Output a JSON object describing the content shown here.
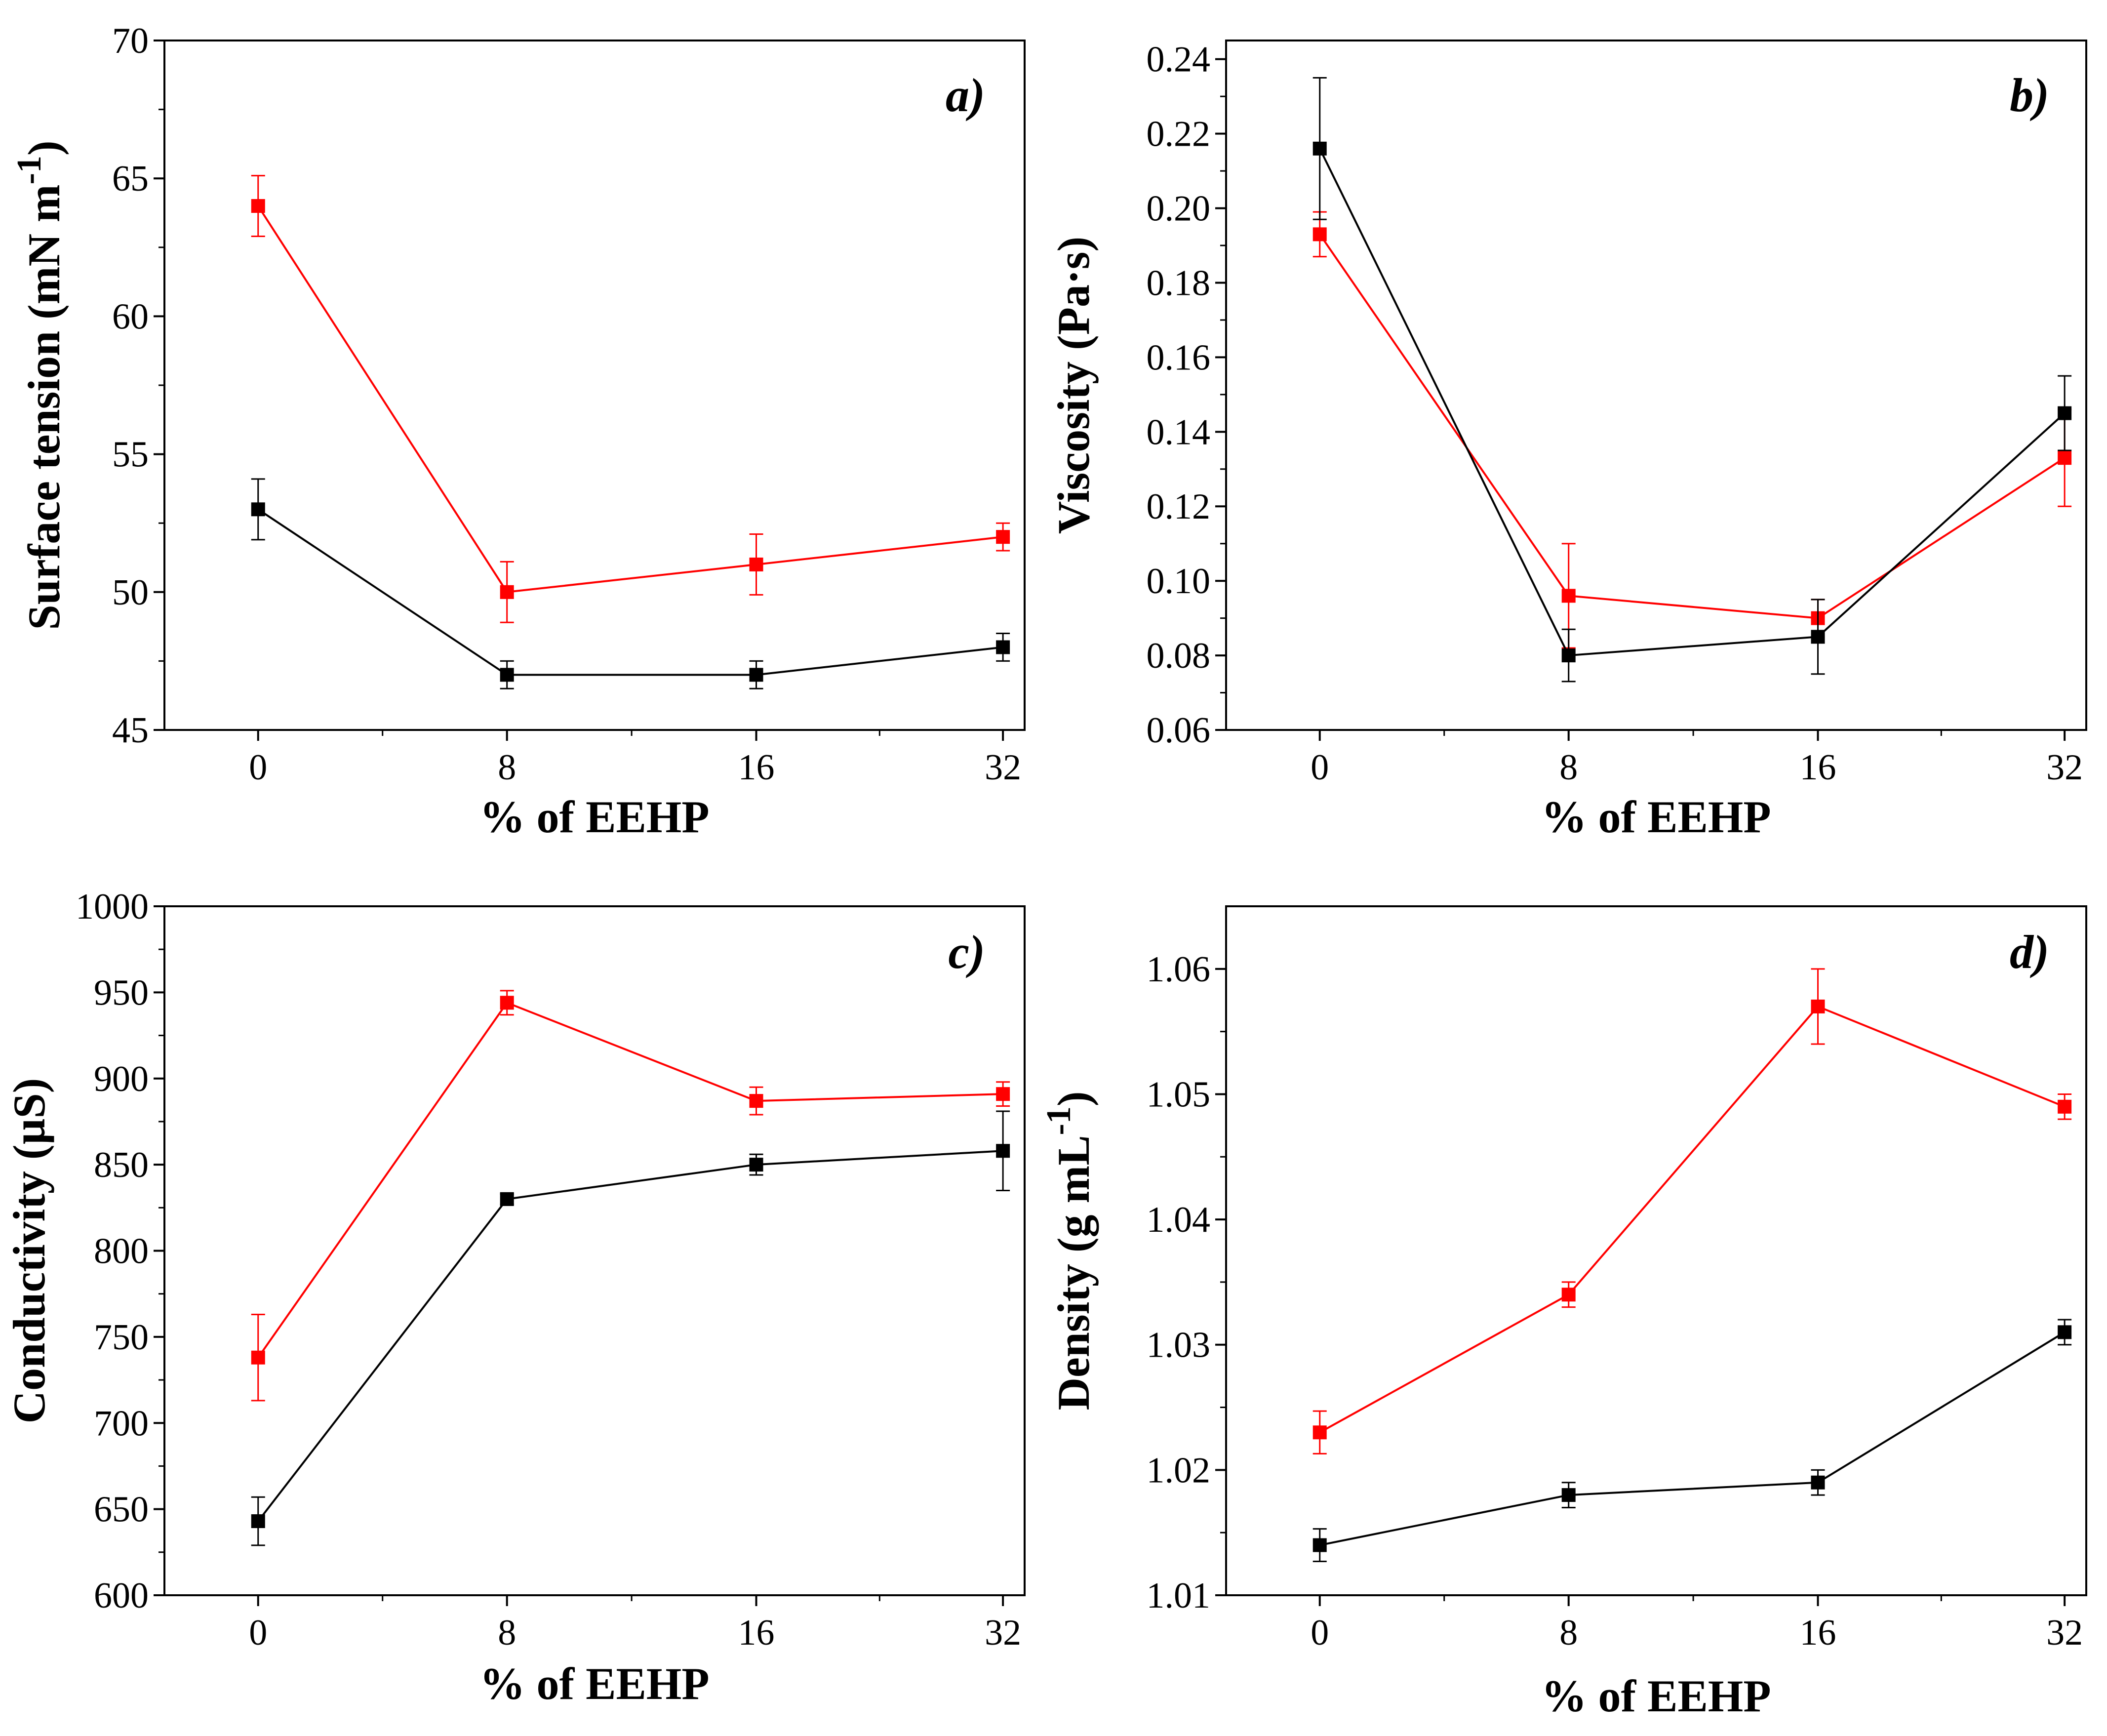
{
  "chart_data": [
    {
      "type": "line",
      "panel_label": "a)",
      "xlabel": "% of EEHP",
      "ylabel": "Surface tension (mN m",
      "ylabel_superscript": "-1",
      "ylabel_suffix": ")",
      "categories": [
        "0",
        "8",
        "16",
        "32"
      ],
      "ylim": [
        45,
        70
      ],
      "yticks": [
        45,
        50,
        55,
        60,
        65,
        70
      ],
      "ytick_labels": [
        "45",
        "50",
        "55",
        "60",
        "65",
        "70"
      ],
      "series": [
        {
          "color": "#ff0000",
          "values": [
            64,
            50,
            51,
            52
          ],
          "errors": [
            1.1,
            1.1,
            1.1,
            0.5
          ]
        },
        {
          "color": "#000000",
          "values": [
            53,
            47,
            47,
            48
          ],
          "errors": [
            1.1,
            0.5,
            0.5,
            0.5
          ]
        }
      ]
    },
    {
      "type": "line",
      "panel_label": "b)",
      "xlabel": "% of EEHP",
      "ylabel": "Viscosity (Pa·s)",
      "ylabel_superscript": "",
      "ylabel_suffix": "",
      "categories": [
        "0",
        "8",
        "16",
        "32"
      ],
      "ylim": [
        0.06,
        0.245
      ],
      "yticks": [
        0.06,
        0.08,
        0.1,
        0.12,
        0.14,
        0.16,
        0.18,
        0.2,
        0.22,
        0.24
      ],
      "ytick_labels": [
        "0.06",
        "0.08",
        "0.10",
        "0.12",
        "0.14",
        "0.16",
        "0.18",
        "0.20",
        "0.22",
        "0.24"
      ],
      "series": [
        {
          "color": "#ff0000",
          "values": [
            0.193,
            0.096,
            0.09,
            0.133
          ],
          "errors": [
            0.006,
            0.014,
            0.005,
            0.013
          ]
        },
        {
          "color": "#000000",
          "values": [
            0.216,
            0.08,
            0.085,
            0.145
          ],
          "errors": [
            0.019,
            0.007,
            0.01,
            0.01
          ]
        }
      ]
    },
    {
      "type": "line",
      "panel_label": "c)",
      "xlabel": "% of EEHP",
      "ylabel": "Conductivity (µS)",
      "ylabel_superscript": "",
      "ylabel_suffix": "",
      "categories": [
        "0",
        "8",
        "16",
        "32"
      ],
      "ylim": [
        600,
        1000
      ],
      "yticks": [
        600,
        650,
        700,
        750,
        800,
        850,
        900,
        950,
        1000
      ],
      "ytick_labels": [
        "600",
        "650",
        "700",
        "750",
        "800",
        "850",
        "900",
        "950",
        "1000"
      ],
      "series": [
        {
          "color": "#ff0000",
          "values": [
            738,
            944,
            887,
            891
          ],
          "errors": [
            25,
            7,
            8,
            7
          ]
        },
        {
          "color": "#000000",
          "values": [
            643,
            830,
            850,
            858
          ],
          "errors": [
            14,
            3,
            6,
            23
          ]
        }
      ]
    },
    {
      "type": "line",
      "panel_label": "d)",
      "xlabel": "% of EEHP",
      "ylabel": "Density (g mL",
      "ylabel_superscript": "-1",
      "ylabel_suffix": ")",
      "categories": [
        "0",
        "8",
        "16",
        "32"
      ],
      "ylim": [
        1.01,
        1.065
      ],
      "yticks": [
        1.01,
        1.02,
        1.03,
        1.04,
        1.05,
        1.06
      ],
      "ytick_labels": [
        "1.01",
        "1.02",
        "1.03",
        "1.04",
        "1.05",
        "1.06"
      ],
      "series": [
        {
          "color": "#ff0000",
          "values": [
            1.023,
            1.034,
            1.057,
            1.049
          ],
          "errors": [
            0.0017,
            0.001,
            0.003,
            0.001
          ]
        },
        {
          "color": "#000000",
          "values": [
            1.014,
            1.018,
            1.019,
            1.031
          ],
          "errors": [
            0.0013,
            0.001,
            0.001,
            0.001
          ]
        }
      ]
    }
  ]
}
